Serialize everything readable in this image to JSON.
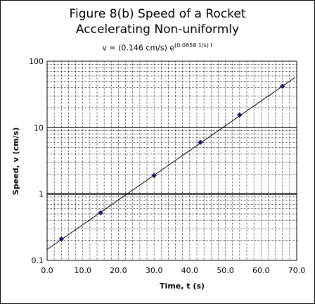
{
  "chart_data": {
    "type": "scatter",
    "title": "Figure 8(b) Speed of a Rocket",
    "title_line2": "Accelerating Non-uniformly",
    "subtitle": {
      "prefix": "v = (0.146 cm/s) e",
      "exponent": "(0.0858 1/s) t"
    },
    "xlabel": "Time, t (s)",
    "ylabel": "Speed, v (cm/s)",
    "xlim": [
      0,
      70
    ],
    "ylim": [
      0.1,
      100
    ],
    "yscale": "log",
    "grid": true,
    "legend": "none",
    "x_ticks": [
      "0.0",
      "10.0",
      "20.0",
      "30.0",
      "40.0",
      "50.0",
      "60.0",
      "70.0"
    ],
    "y_ticks": [
      "0.1",
      "1",
      "10",
      "100"
    ],
    "series": [
      {
        "x": [
          4,
          15,
          30,
          43,
          54,
          66
        ],
        "y": [
          0.21,
          0.52,
          1.9,
          6.0,
          15.5,
          42
        ],
        "marker": "diamond",
        "color": "#1a1a6e"
      }
    ],
    "fit": {
      "a": 0.146,
      "b": 0.0858
    }
  }
}
